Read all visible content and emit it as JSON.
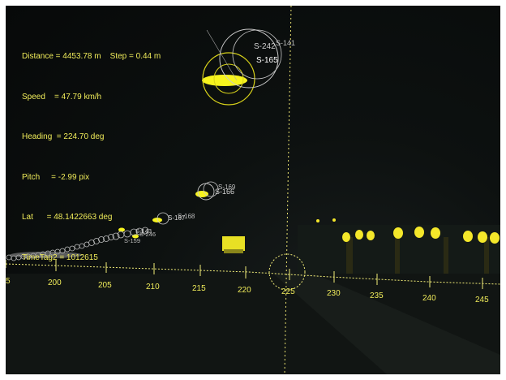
{
  "hud": {
    "distance": "Distance = 4453.78 m    Step = 0.44 m",
    "speed": "Speed    = 47.79 km/h",
    "heading": "Heading  = 224.70 deg",
    "pitch": "Pitch     = -2.99 pix",
    "lat": "Lat      = 48.1422663 deg",
    "timetag": "TimeTag2 = 1012615"
  },
  "scale": {
    "ticks": [
      "5",
      "200",
      "205",
      "210",
      "215",
      "220",
      "225",
      "230",
      "235",
      "240",
      "245"
    ]
  },
  "object_labels": {
    "s165": "S-165",
    "s242": "S-242",
    "s141": "S-141",
    "s166": "S-166",
    "s167": "S-167",
    "s168": "S-168",
    "s169": "S-169",
    "s143": "S-143",
    "s246": "S-246",
    "s159": "S-159"
  },
  "colors": {
    "hud_text": "#f0ec5a",
    "marker_yellow": "#f7f41e",
    "ring_gray": "#c8c8c8",
    "scale_line": "#f3ee78"
  }
}
